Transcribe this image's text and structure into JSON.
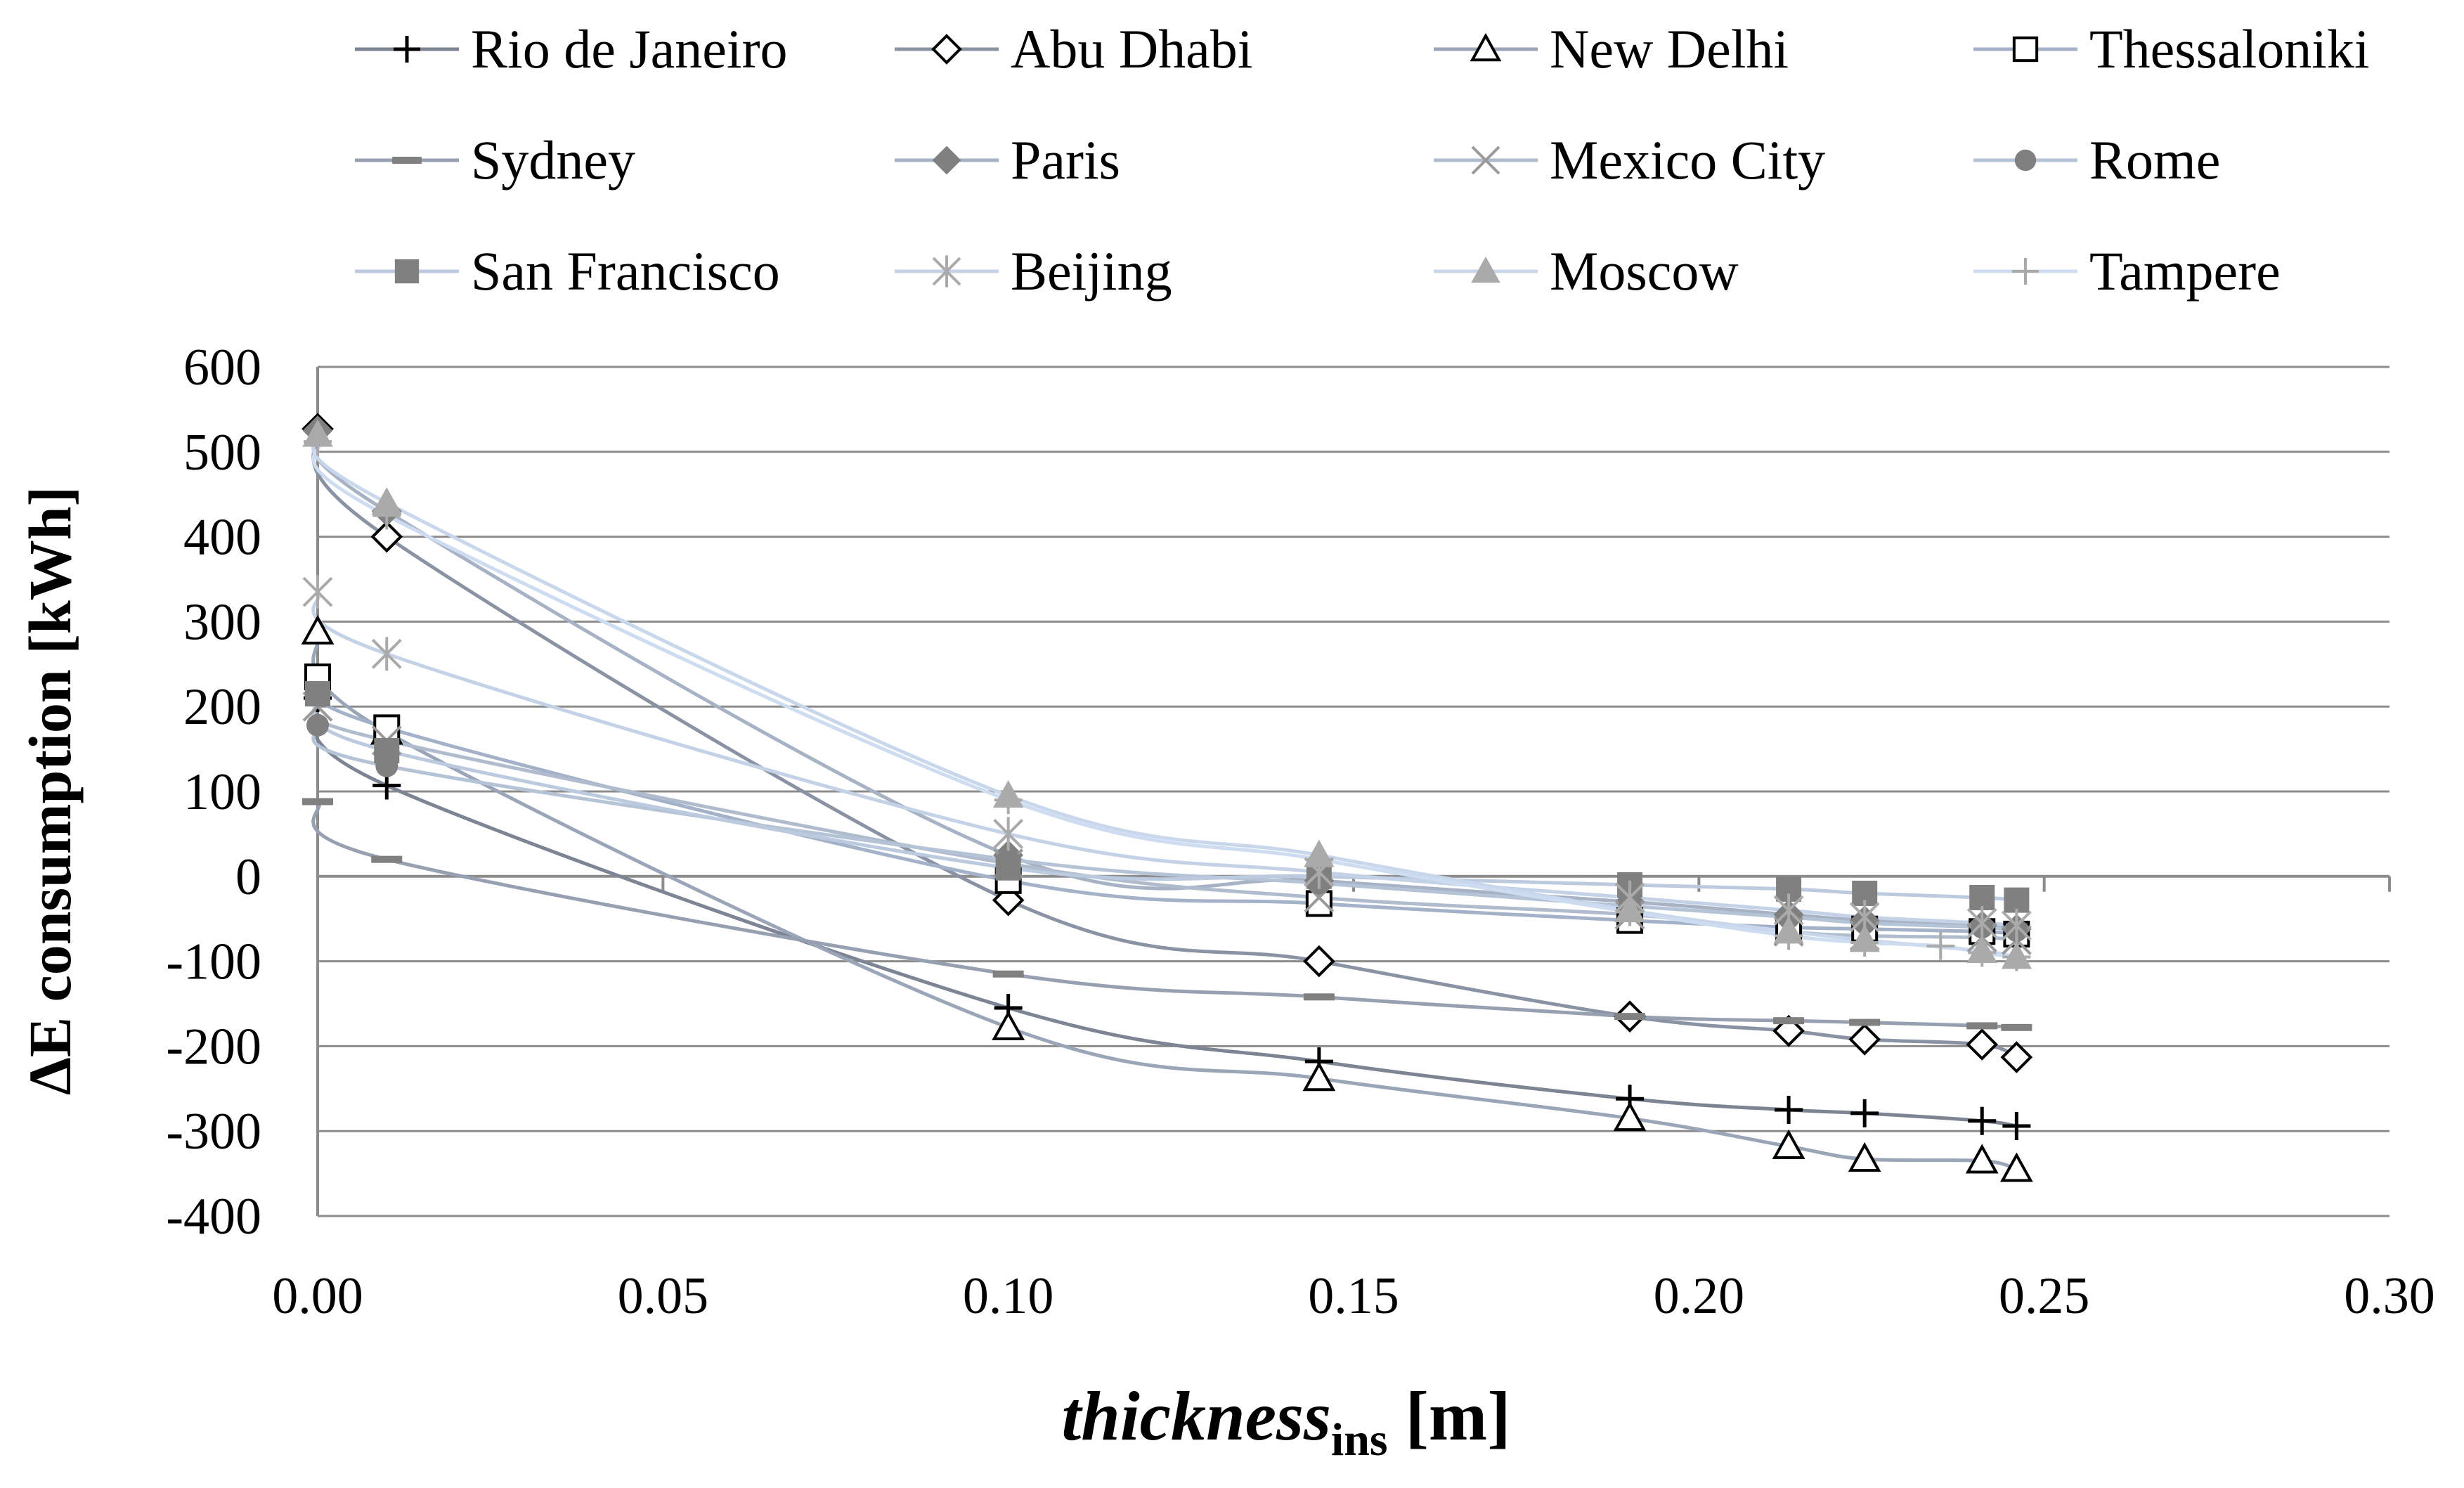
{
  "chart_data": {
    "type": "scatter",
    "title": "",
    "xlabel_main": "thickness",
    "xlabel_sub": "ins",
    "xlabel_unit": " [m]",
    "ylabel": "ΔE  consumption [kWh]",
    "xlim": [
      0,
      0.3
    ],
    "ylim": [
      -400,
      600
    ],
    "x_ticks": [
      0,
      0.05,
      0.1,
      0.15,
      0.2,
      0.25,
      0.3
    ],
    "x_tick_labels": [
      "0.00",
      "0.05",
      "0.10",
      "0.15",
      "0.20",
      "0.25",
      "0.30"
    ],
    "y_ticks": [
      600,
      500,
      400,
      300,
      200,
      100,
      0,
      -100,
      -200,
      -300,
      -400
    ],
    "y_tick_labels": [
      "600",
      "500",
      "400",
      "300",
      "200",
      "100",
      "0",
      "-100",
      "-200",
      "-300",
      "-400"
    ],
    "grid": "horizontal",
    "legend_position": "top",
    "series": [
      {
        "name": "Rio de Janeiro",
        "marker": "plus",
        "marker_color": "#000000",
        "line_color": "#7d8594",
        "points": [
          [
            0,
            210
          ],
          [
            0.01,
            107
          ],
          [
            0.1,
            -155
          ],
          [
            0.145,
            -218
          ],
          [
            0.19,
            -262
          ],
          [
            0.213,
            -275
          ],
          [
            0.224,
            -279
          ],
          [
            0.241,
            -288
          ],
          [
            0.246,
            -294
          ]
        ]
      },
      {
        "name": "Abu Dhabi",
        "marker": "diamond-open",
        "marker_color": "#000000",
        "line_color": "#8a93a3",
        "points": [
          [
            0,
            527
          ],
          [
            0.01,
            400
          ],
          [
            0.1,
            -28
          ],
          [
            0.145,
            -100
          ],
          [
            0.19,
            -165
          ],
          [
            0.213,
            -182
          ],
          [
            0.224,
            -192
          ],
          [
            0.241,
            -198
          ],
          [
            0.246,
            -213
          ]
        ]
      },
      {
        "name": "New Delhi",
        "marker": "triangle-open",
        "marker_color": "#000000",
        "line_color": "#9aa5b8",
        "points": [
          [
            0,
            288
          ],
          [
            0.01,
            170
          ],
          [
            0.1,
            -178
          ],
          [
            0.145,
            -238
          ],
          [
            0.19,
            -285
          ],
          [
            0.213,
            -318
          ],
          [
            0.224,
            -333
          ],
          [
            0.241,
            -335
          ],
          [
            0.246,
            -345
          ]
        ]
      },
      {
        "name": "Thessaloniki",
        "marker": "square-open",
        "marker_color": "#000000",
        "line_color": "#a3b2c8",
        "points": [
          [
            0,
            235
          ],
          [
            0.01,
            175
          ],
          [
            0.1,
            -5
          ],
          [
            0.145,
            -32
          ],
          [
            0.19,
            -52
          ],
          [
            0.213,
            -60
          ],
          [
            0.224,
            -62
          ],
          [
            0.241,
            -65
          ],
          [
            0.246,
            -68
          ]
        ]
      },
      {
        "name": "Sydney",
        "marker": "dash",
        "marker_color": "#808080",
        "line_color": "#96a0b0",
        "points": [
          [
            0,
            88
          ],
          [
            0.01,
            20
          ],
          [
            0.1,
            -115
          ],
          [
            0.145,
            -142
          ],
          [
            0.19,
            -165
          ],
          [
            0.213,
            -170
          ],
          [
            0.224,
            -172
          ],
          [
            0.241,
            -176
          ],
          [
            0.246,
            -178
          ]
        ]
      },
      {
        "name": "Paris",
        "marker": "diamond-filled",
        "marker_color": "#808080",
        "line_color": "#a7b3c5",
        "points": [
          [
            0,
            525
          ],
          [
            0.01,
            430
          ],
          [
            0.1,
            25
          ],
          [
            0.145,
            -5
          ],
          [
            0.19,
            -30
          ],
          [
            0.213,
            -45
          ],
          [
            0.224,
            -52
          ],
          [
            0.241,
            -58
          ],
          [
            0.246,
            -62
          ]
        ]
      },
      {
        "name": "Mexico City",
        "marker": "x",
        "marker_color": "#999999",
        "line_color": "#b0bccd",
        "points": [
          [
            0,
            200
          ],
          [
            0.01,
            160
          ],
          [
            0.1,
            15
          ],
          [
            0.145,
            -25
          ],
          [
            0.19,
            -45
          ],
          [
            0.213,
            -65
          ],
          [
            0.224,
            -70
          ],
          [
            0.241,
            -72
          ],
          [
            0.246,
            -75
          ]
        ]
      },
      {
        "name": "Rome",
        "marker": "circle-filled",
        "marker_color": "#808080",
        "line_color": "#b5c3d6",
        "points": [
          [
            0,
            178
          ],
          [
            0.01,
            130
          ],
          [
            0.1,
            20
          ],
          [
            0.145,
            -8
          ],
          [
            0.19,
            -35
          ],
          [
            0.213,
            -48
          ],
          [
            0.224,
            -55
          ],
          [
            0.241,
            -60
          ],
          [
            0.246,
            -64
          ]
        ]
      },
      {
        "name": "San Francisco",
        "marker": "square-filled",
        "marker_color": "#808080",
        "line_color": "#bccae0",
        "points": [
          [
            0,
            215
          ],
          [
            0.01,
            148
          ],
          [
            0.1,
            10
          ],
          [
            0.145,
            0
          ],
          [
            0.19,
            -10
          ],
          [
            0.213,
            -15
          ],
          [
            0.224,
            -20
          ],
          [
            0.241,
            -25
          ],
          [
            0.246,
            -28
          ]
        ]
      },
      {
        "name": "Beijing",
        "marker": "asterisk",
        "marker_color": "#aaaaaa",
        "line_color": "#c3d2e6",
        "points": [
          [
            0,
            335
          ],
          [
            0.01,
            262
          ],
          [
            0.1,
            50
          ],
          [
            0.145,
            5
          ],
          [
            0.19,
            -25
          ],
          [
            0.213,
            -40
          ],
          [
            0.224,
            -48
          ],
          [
            0.241,
            -55
          ],
          [
            0.246,
            -58
          ]
        ]
      },
      {
        "name": "Moscow",
        "marker": "triangle-filled",
        "marker_color": "#aaaaaa",
        "line_color": "#c8d7eb",
        "points": [
          [
            0,
            520
          ],
          [
            0.01,
            440
          ],
          [
            0.1,
            95
          ],
          [
            0.145,
            25
          ],
          [
            0.19,
            -40
          ],
          [
            0.213,
            -65
          ],
          [
            0.224,
            -75
          ],
          [
            0.241,
            -88
          ],
          [
            0.246,
            -95
          ]
        ]
      },
      {
        "name": "Tampere",
        "marker": "plus-thin",
        "marker_color": "#aaaaaa",
        "line_color": "#cddcf0",
        "points": [
          [
            0,
            512
          ],
          [
            0.01,
            425
          ],
          [
            0.1,
            90
          ],
          [
            0.145,
            20
          ],
          [
            0.19,
            -42
          ],
          [
            0.213,
            -70
          ],
          [
            0.224,
            -78
          ],
          [
            0.235,
            -82
          ],
          [
            0.241,
            -90
          ],
          [
            0.246,
            -95
          ]
        ]
      }
    ]
  }
}
